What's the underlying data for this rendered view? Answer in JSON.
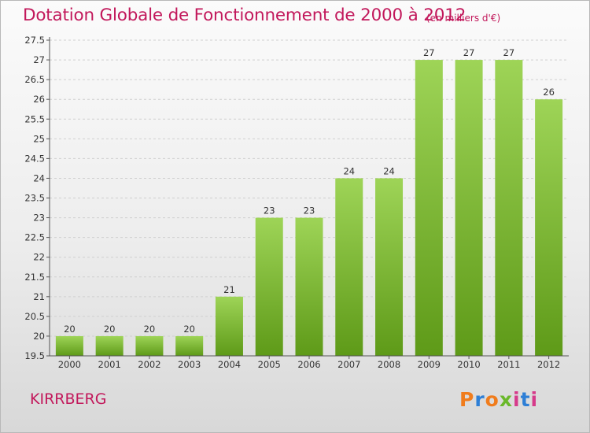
{
  "header": {
    "title": "Dotation Globale de Fonctionnement de 2000 à 2012",
    "unit_note": "(en milliers d'€)"
  },
  "footer": {
    "commune": "KIRRBERG",
    "logo_text": "Proxiti"
  },
  "colors": {
    "title": "#c2185b",
    "bar_top": "#9ed457",
    "bar_bottom": "#5e9a18",
    "grid": "#cfcfcf",
    "axis": "#555555",
    "logo": [
      "#f07c1c",
      "#2e7fd6",
      "#f07c1c",
      "#6ab82a",
      "#d63a8a",
      "#2e7fd6",
      "#d63a8a"
    ]
  },
  "chart_data": {
    "type": "bar",
    "title": "Dotation Globale de Fonctionnement de 2000 à 2012",
    "subtitle": "(en milliers d'€)",
    "xlabel": "",
    "ylabel": "",
    "categories": [
      "2000",
      "2001",
      "2002",
      "2003",
      "2004",
      "2005",
      "2006",
      "2007",
      "2008",
      "2009",
      "2010",
      "2011",
      "2012"
    ],
    "values": [
      20,
      20,
      20,
      20,
      21,
      23,
      23,
      24,
      24,
      27,
      27,
      27,
      26
    ],
    "ylim": [
      19.5,
      27.5
    ],
    "yticks": [
      "19.5",
      "20",
      "20.5",
      "21",
      "21.5",
      "22",
      "22.5",
      "23",
      "23.5",
      "24",
      "24.5",
      "25",
      "25.5",
      "26",
      "26.5",
      "27",
      "27.5"
    ],
    "grid": "horizontal dashed",
    "legend": "none"
  }
}
